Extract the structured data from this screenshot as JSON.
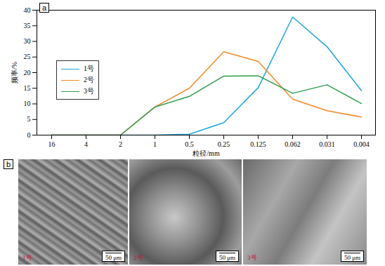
{
  "chart_data": {
    "type": "line",
    "annotations": [
      "a"
    ],
    "x_label": "粒径/mm",
    "y_label": "频率/%",
    "categories": [
      "16",
      "4",
      "2",
      "1",
      "0.5",
      "0.25",
      "0.125",
      "0.062",
      "0.031",
      "0.004"
    ],
    "series": [
      {
        "name": "1号",
        "color": "#1ea6df",
        "values": [
          0,
          0,
          0,
          0,
          0.3,
          4,
          15.2,
          37.8,
          28.3,
          14.2
        ]
      },
      {
        "name": "2号",
        "color": "#f28a26",
        "values": [
          0,
          0,
          0,
          9,
          15,
          26.7,
          23.6,
          11.5,
          7.8,
          5.8
        ]
      },
      {
        "name": "3号",
        "color": "#2f9e4c",
        "values": [
          0,
          0,
          0,
          9,
          12.4,
          18.9,
          19,
          13.4,
          16.1,
          10.1
        ]
      }
    ],
    "ylim": [
      0,
      40
    ],
    "yticks": [
      0,
      5,
      10,
      15,
      20,
      25,
      30,
      35,
      40
    ],
    "legend": "left",
    "grid": false
  },
  "panel_b": {
    "label": "b",
    "images": [
      {
        "caption": "1号",
        "scale_bar": "50 μm"
      },
      {
        "caption": "2号",
        "scale_bar": "50 μm"
      },
      {
        "caption": "3号",
        "scale_bar": "50 μm"
      }
    ]
  }
}
